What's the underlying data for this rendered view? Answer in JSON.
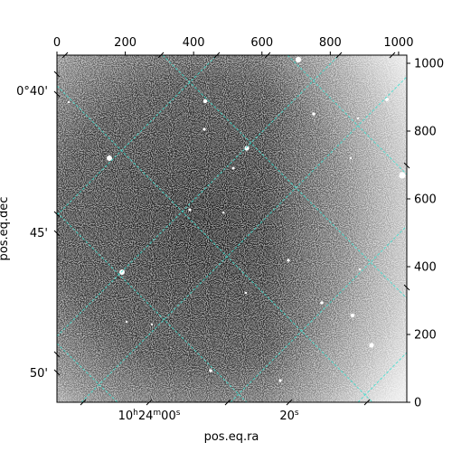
{
  "chart_data": {
    "type": "image",
    "title": "",
    "xlabel": "pos.eq.ra",
    "ylabel": "pos.eq.dec",
    "pixel_axes": {
      "x": {
        "range": [
          0,
          1024
        ],
        "ticks": [
          0,
          200,
          400,
          600,
          800,
          1000
        ],
        "tick_labels": [
          "0",
          "200",
          "400",
          "600",
          "800",
          "1000"
        ]
      },
      "y": {
        "range": [
          0,
          1024
        ],
        "ticks": [
          0,
          200,
          400,
          600,
          800,
          1000
        ],
        "tick_labels": [
          "0",
          "200",
          "400",
          "600",
          "800",
          "1000"
        ]
      }
    },
    "world_axes": {
      "ra_labels": [
        "10h24m00s",
        "20s"
      ],
      "dec_labels": [
        "0°40'",
        "45'",
        "50'"
      ]
    },
    "grid": true,
    "grid_color": "#40e0d0",
    "colormap": "gray",
    "image_description_colors": {
      "background": "#2a2a2a",
      "bright": "#ffffff"
    }
  }
}
